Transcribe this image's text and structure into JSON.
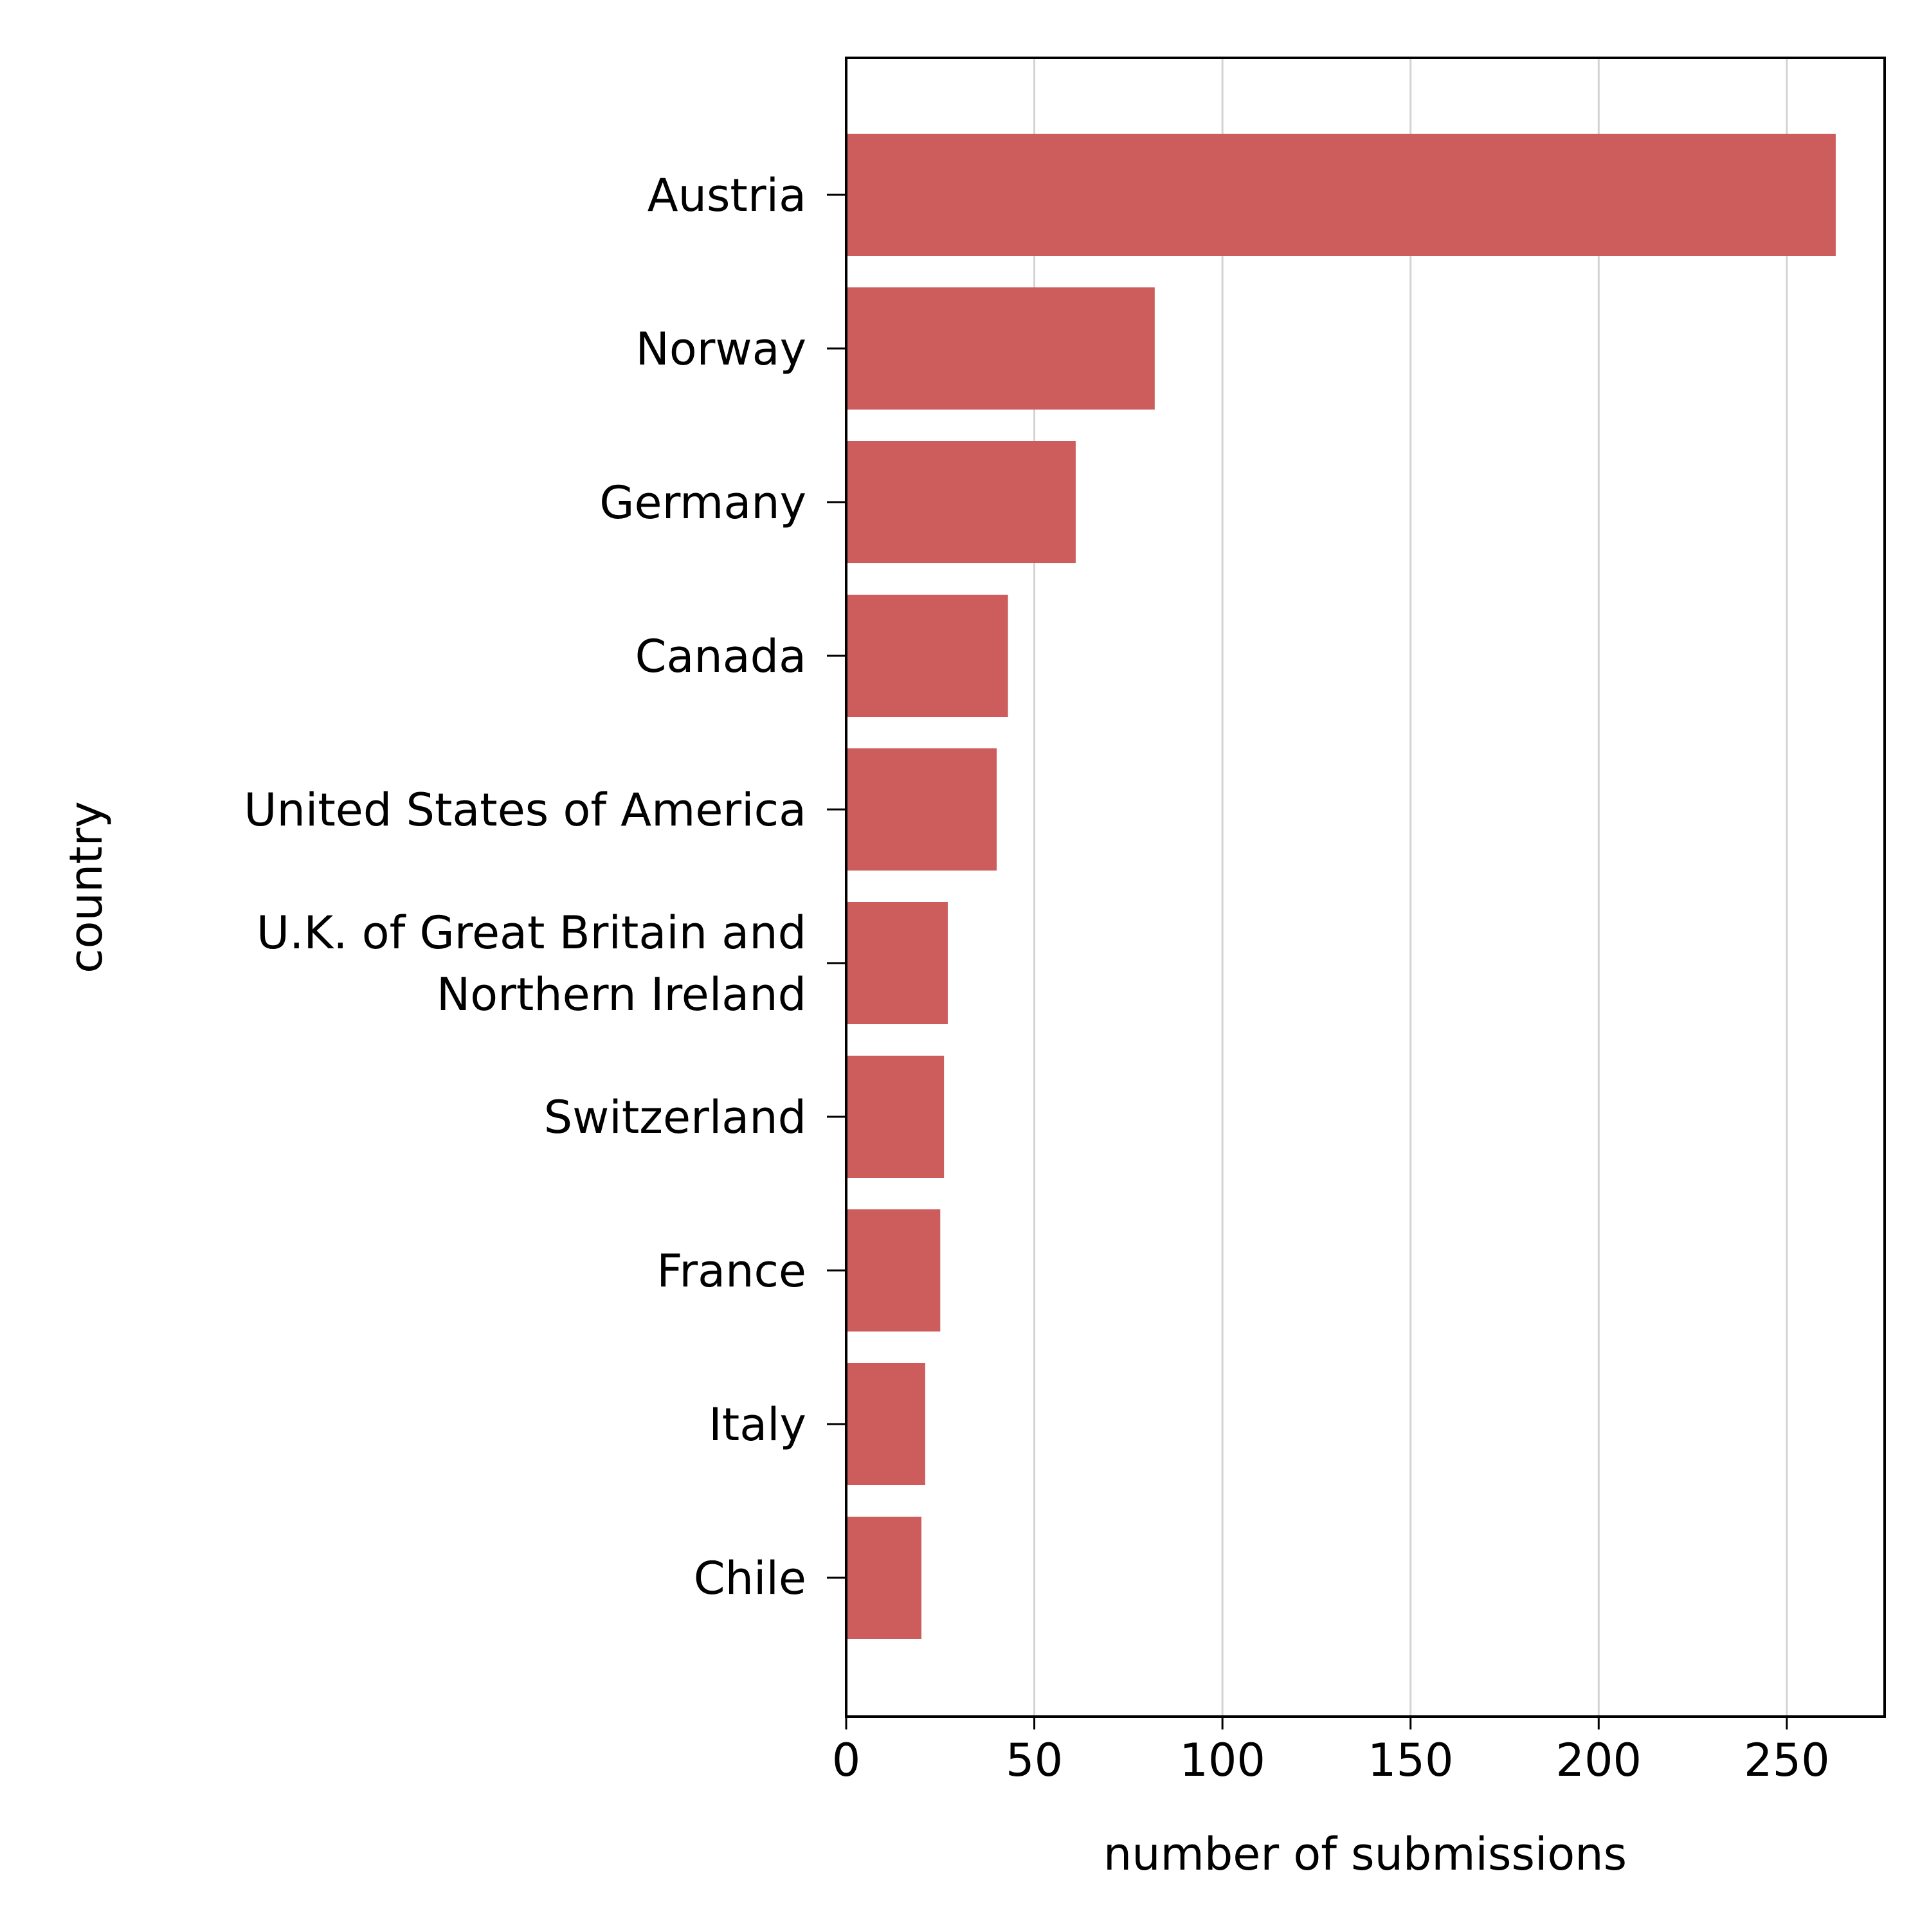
{
  "chart_data": {
    "type": "bar",
    "orientation": "horizontal",
    "title": "",
    "xlabel": "number of submissions",
    "ylabel": "country",
    "xlim": [
      0,
      276
    ],
    "xticks": [
      0,
      50,
      100,
      150,
      200,
      250
    ],
    "grid": "vertical",
    "legend": "none",
    "bar_color": "#cd5c5c",
    "categories": [
      "Austria",
      "Norway",
      "Germany",
      "Canada",
      "United States of America",
      "U.K. of Great Britain and\nNorthern Ireland",
      "Switzerland",
      "France",
      "Italy",
      "Chile"
    ],
    "values": [
      263,
      82,
      61,
      43,
      40,
      27,
      26,
      25,
      21,
      20
    ]
  }
}
